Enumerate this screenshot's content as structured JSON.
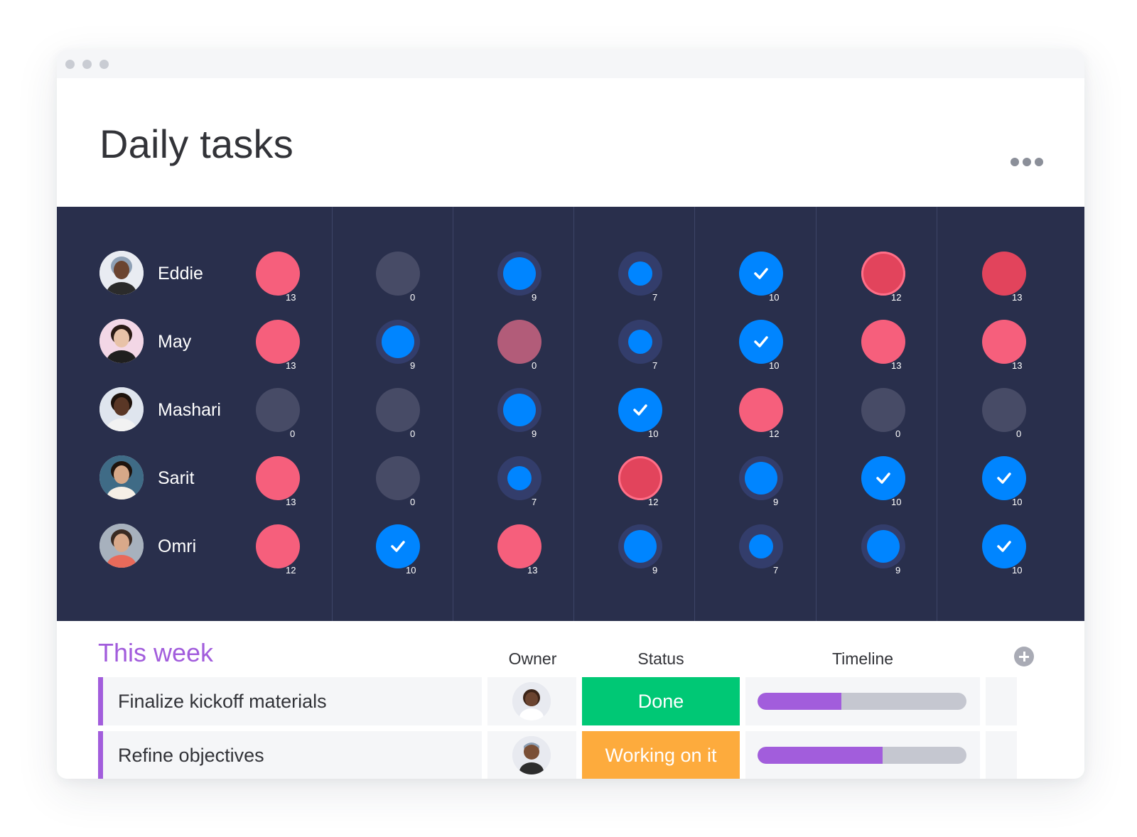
{
  "board": {
    "title": "Daily tasks"
  },
  "colors": {
    "red": "#f65f7c",
    "dark_red": "#e2445c",
    "blue": "#0085ff",
    "gray": "#474b66",
    "navy": "#292f4c",
    "purple": "#a25ddc",
    "green": "#00c875",
    "orange": "#fdab3d"
  },
  "people": [
    {
      "name": "Eddie",
      "cells": [
        {
          "state": "red",
          "count": "13"
        },
        {
          "state": "gray",
          "count": "0"
        },
        {
          "state": "blue-large",
          "count": "9"
        },
        {
          "state": "blue-small",
          "count": "7"
        },
        {
          "state": "done",
          "count": "10"
        },
        {
          "state": "dark-red-ring",
          "count": "12"
        },
        {
          "state": "dark-red",
          "count": "13"
        }
      ]
    },
    {
      "name": "May",
      "cells": [
        {
          "state": "red",
          "count": "13"
        },
        {
          "state": "blue-large",
          "count": "9"
        },
        {
          "state": "mauve",
          "count": "0"
        },
        {
          "state": "blue-small",
          "count": "7"
        },
        {
          "state": "done",
          "count": "10"
        },
        {
          "state": "red",
          "count": "13"
        },
        {
          "state": "red",
          "count": "13"
        }
      ]
    },
    {
      "name": "Mashari",
      "cells": [
        {
          "state": "gray",
          "count": "0"
        },
        {
          "state": "gray",
          "count": "0"
        },
        {
          "state": "blue-large",
          "count": "9"
        },
        {
          "state": "done",
          "count": "10"
        },
        {
          "state": "red",
          "count": "12"
        },
        {
          "state": "gray",
          "count": "0"
        },
        {
          "state": "gray",
          "count": "0"
        }
      ]
    },
    {
      "name": "Sarit",
      "cells": [
        {
          "state": "red",
          "count": "13"
        },
        {
          "state": "gray",
          "count": "0"
        },
        {
          "state": "blue-small",
          "count": "7"
        },
        {
          "state": "dark-red-ring",
          "count": "12"
        },
        {
          "state": "blue-large",
          "count": "9"
        },
        {
          "state": "done",
          "count": "10"
        },
        {
          "state": "done",
          "count": "10"
        }
      ]
    },
    {
      "name": "Omri",
      "cells": [
        {
          "state": "red",
          "count": "12"
        },
        {
          "state": "done",
          "count": "10"
        },
        {
          "state": "red",
          "count": "13"
        },
        {
          "state": "blue-large",
          "count": "9"
        },
        {
          "state": "blue-small",
          "count": "7"
        },
        {
          "state": "blue-large",
          "count": "9"
        },
        {
          "state": "done",
          "count": "10"
        }
      ]
    }
  ],
  "group": {
    "title": "This week",
    "columns": {
      "owner": "Owner",
      "status": "Status",
      "timeline": "Timeline"
    },
    "items": [
      {
        "name": "Finalize kickoff materials",
        "status": "Done",
        "status_color": "#00c875",
        "timeline_progress": 0.4
      },
      {
        "name": "Refine objectives",
        "status": "Working on it",
        "status_color": "#fdab3d",
        "timeline_progress": 0.6
      }
    ]
  }
}
